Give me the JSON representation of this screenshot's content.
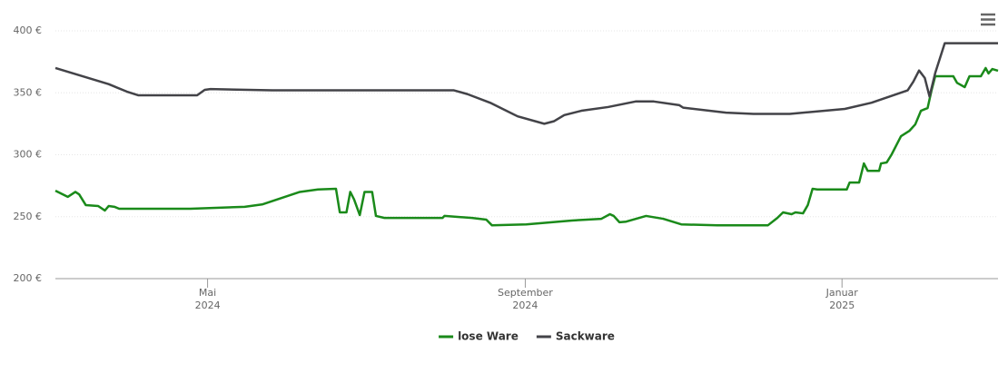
{
  "chart_data": {
    "type": "line",
    "xlim": [
      2024.173,
      2025.164
    ],
    "xticks": [
      {
        "value": 2024.333,
        "label": "Mai\n2024"
      },
      {
        "value": 2024.667,
        "label": "September\n2024"
      },
      {
        "value": 2025.0,
        "label": "Januar\n2025"
      }
    ],
    "ylim": [
      200,
      400
    ],
    "yticks": [
      {
        "value": 200,
        "label": "200 €"
      },
      {
        "value": 250,
        "label": "250 €"
      },
      {
        "value": 300,
        "label": "300 €"
      },
      {
        "value": 350,
        "label": "350 €"
      },
      {
        "value": 400,
        "label": "400 €"
      }
    ],
    "grid": true,
    "legend": "bottom",
    "series": [
      {
        "name": "lose Ware",
        "color": "#1a8a1a",
        "x": [
          2024.173,
          2024.186,
          2024.194,
          2024.198,
          2024.205,
          2024.218,
          2024.225,
          2024.229,
          2024.235,
          2024.24,
          2024.315,
          2024.372,
          2024.391,
          2024.43,
          2024.449,
          2024.468,
          2024.472,
          2024.479,
          2024.483,
          2024.487,
          2024.493,
          2024.498,
          2024.506,
          2024.51,
          2024.519,
          2024.58,
          2024.582,
          2024.611,
          2024.626,
          2024.632,
          2024.668,
          2024.716,
          2024.747,
          2024.756,
          2024.76,
          2024.766,
          2024.773,
          2024.794,
          2024.812,
          2024.831,
          2024.869,
          2024.922,
          2024.932,
          2024.938,
          2024.947,
          2024.951,
          2024.959,
          2024.964,
          2024.969,
          2024.974,
          2025.005,
          2025.008,
          2025.018,
          2025.023,
          2025.027,
          2025.039,
          2025.041,
          2025.047,
          2025.052,
          2025.062,
          2025.071,
          2025.077,
          2025.083,
          2025.09,
          2025.094,
          2025.098,
          2025.117,
          2025.121,
          2025.129,
          2025.134,
          2025.146,
          2025.151,
          2025.154,
          2025.158,
          2025.164
        ],
        "values": [
          271,
          266,
          270,
          268,
          259.3,
          258.6,
          255,
          258.6,
          258,
          256.4,
          256.4,
          258,
          260,
          270,
          272,
          272.5,
          253.5,
          253.5,
          270,
          264,
          251.3,
          270,
          270,
          250.6,
          249,
          249,
          250.6,
          249,
          247.6,
          243,
          243.8,
          246.9,
          248.3,
          252,
          250.6,
          245.5,
          246,
          250.6,
          248.3,
          243.8,
          243,
          243,
          249,
          253.5,
          252,
          253.5,
          252.7,
          259.3,
          272.5,
          272,
          272,
          277.6,
          277.6,
          293,
          287,
          287,
          293,
          293.8,
          300,
          315,
          319.4,
          324.5,
          335.5,
          337.7,
          351.6,
          363.4,
          363.4,
          358,
          354.6,
          363.4,
          363.4,
          370,
          365.6,
          369.2,
          367.8
        ]
      },
      {
        "name": "Sackware",
        "color": "#434348",
        "x": [
          2024.173,
          2024.229,
          2024.248,
          2024.26,
          2024.322,
          2024.33,
          2024.336,
          2024.401,
          2024.592,
          2024.606,
          2024.63,
          2024.659,
          2024.687,
          2024.697,
          2024.708,
          2024.726,
          2024.754,
          2024.783,
          2024.802,
          2024.829,
          2024.833,
          2024.878,
          2024.907,
          2024.945,
          2025.003,
          2025.031,
          2025.069,
          2025.075,
          2025.081,
          2025.087,
          2025.092,
          2025.098,
          2025.108,
          2025.117,
          2025.164
        ],
        "values": [
          370,
          357,
          351,
          348,
          348,
          352.4,
          353,
          352,
          352,
          349,
          342,
          331,
          325,
          327,
          332,
          335.5,
          338.5,
          343,
          343,
          340,
          338,
          334,
          333,
          333,
          337,
          342,
          352,
          359,
          368,
          362,
          347,
          366,
          390,
          390,
          390
        ]
      }
    ]
  }
}
